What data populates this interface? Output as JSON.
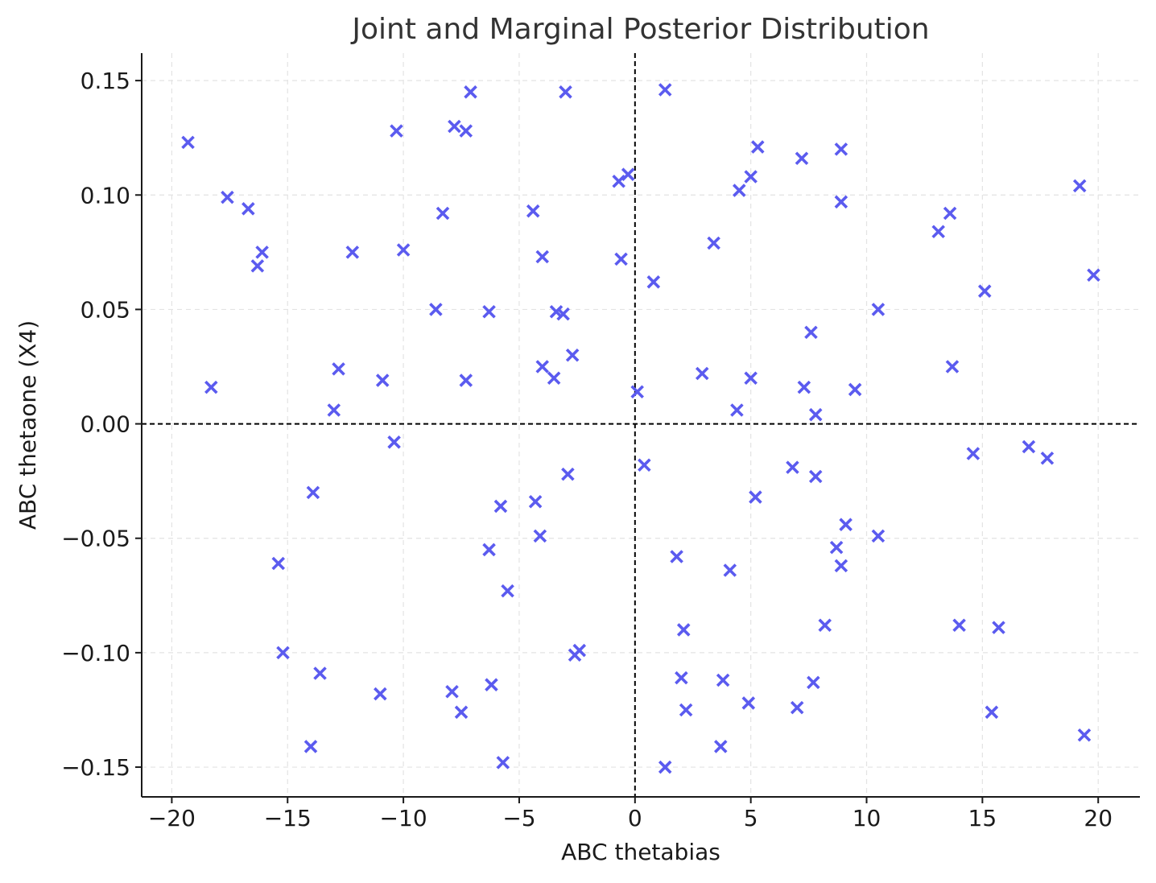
{
  "chart_data": {
    "type": "scatter",
    "title": "Joint and Marginal Posterior Distribution",
    "xlabel": "ABC thetabias",
    "ylabel": "ABC thetaone (X4)",
    "xlim": [
      -21.3,
      21.8
    ],
    "ylim": [
      -0.163,
      0.162
    ],
    "xticks": [
      -20,
      -15,
      -10,
      -5,
      0,
      5,
      10,
      15,
      20
    ],
    "xtick_labels": [
      "−20",
      "−15",
      "−10",
      "−5",
      "0",
      "5",
      "10",
      "15",
      "20"
    ],
    "yticks": [
      0.15,
      0.1,
      0.05,
      0.0,
      -0.05,
      -0.1,
      -0.15
    ],
    "ytick_labels": [
      "0.15",
      "0.10",
      "0.05",
      "0.00",
      "−0.05",
      "−0.10",
      "−0.15"
    ],
    "grid": true,
    "reference_lines": {
      "x": 0,
      "y": 0
    },
    "marker": "x",
    "color": "#5b5bef",
    "points": [
      [
        -19.3,
        0.123
      ],
      [
        -17.6,
        0.099
      ],
      [
        -16.7,
        0.094
      ],
      [
        -16.1,
        0.075
      ],
      [
        -16.3,
        0.069
      ],
      [
        -18.3,
        0.016
      ],
      [
        -12.2,
        0.075
      ],
      [
        -12.8,
        0.024
      ],
      [
        -13.0,
        0.006
      ],
      [
        -10.9,
        0.019
      ],
      [
        -10.3,
        0.128
      ],
      [
        -10.0,
        0.076
      ],
      [
        -10.4,
        -0.008
      ],
      [
        -8.3,
        0.092
      ],
      [
        -8.6,
        0.05
      ],
      [
        -7.8,
        0.13
      ],
      [
        -7.3,
        0.128
      ],
      [
        -7.1,
        0.145
      ],
      [
        -7.3,
        0.019
      ],
      [
        -6.3,
        0.049
      ],
      [
        -4.4,
        0.093
      ],
      [
        -4.0,
        0.073
      ],
      [
        -3.4,
        0.049
      ],
      [
        -3.1,
        0.048
      ],
      [
        -4.0,
        0.025
      ],
      [
        -3.5,
        0.02
      ],
      [
        -2.7,
        0.03
      ],
      [
        -3.0,
        0.145
      ],
      [
        -0.7,
        0.106
      ],
      [
        -0.3,
        0.109
      ],
      [
        -0.6,
        0.072
      ],
      [
        1.3,
        0.146
      ],
      [
        0.8,
        0.062
      ],
      [
        0.1,
        0.014
      ],
      [
        3.4,
        0.079
      ],
      [
        2.9,
        0.022
      ],
      [
        4.5,
        0.102
      ],
      [
        5.0,
        0.108
      ],
      [
        5.3,
        0.121
      ],
      [
        5.0,
        0.02
      ],
      [
        4.4,
        0.006
      ],
      [
        7.2,
        0.116
      ],
      [
        8.9,
        0.12
      ],
      [
        8.9,
        0.097
      ],
      [
        7.6,
        0.04
      ],
      [
        7.3,
        0.016
      ],
      [
        7.8,
        0.004
      ],
      [
        9.5,
        0.015
      ],
      [
        10.5,
        0.05
      ],
      [
        13.1,
        0.084
      ],
      [
        13.6,
        0.092
      ],
      [
        13.7,
        0.025
      ],
      [
        15.1,
        0.058
      ],
      [
        19.2,
        0.104
      ],
      [
        19.8,
        0.065
      ],
      [
        -13.9,
        -0.03
      ],
      [
        -15.4,
        -0.061
      ],
      [
        -15.2,
        -0.1
      ],
      [
        -13.6,
        -0.109
      ],
      [
        -14.0,
        -0.141
      ],
      [
        -11.0,
        -0.118
      ],
      [
        -7.9,
        -0.117
      ],
      [
        -7.5,
        -0.126
      ],
      [
        -5.8,
        -0.036
      ],
      [
        -6.3,
        -0.055
      ],
      [
        -5.5,
        -0.073
      ],
      [
        -6.2,
        -0.114
      ],
      [
        -5.7,
        -0.148
      ],
      [
        -4.3,
        -0.034
      ],
      [
        -4.1,
        -0.049
      ],
      [
        -2.9,
        -0.022
      ],
      [
        -2.4,
        -0.099
      ],
      [
        -2.6,
        -0.101
      ],
      [
        0.4,
        -0.018
      ],
      [
        1.8,
        -0.058
      ],
      [
        2.1,
        -0.09
      ],
      [
        2.0,
        -0.111
      ],
      [
        2.2,
        -0.125
      ],
      [
        1.3,
        -0.15
      ],
      [
        3.8,
        -0.112
      ],
      [
        3.7,
        -0.141
      ],
      [
        4.1,
        -0.064
      ],
      [
        5.2,
        -0.032
      ],
      [
        4.9,
        -0.122
      ],
      [
        6.8,
        -0.019
      ],
      [
        7.8,
        -0.023
      ],
      [
        7.0,
        -0.124
      ],
      [
        7.7,
        -0.113
      ],
      [
        8.2,
        -0.088
      ],
      [
        9.1,
        -0.044
      ],
      [
        8.7,
        -0.054
      ],
      [
        8.9,
        -0.062
      ],
      [
        10.5,
        -0.049
      ],
      [
        14.0,
        -0.088
      ],
      [
        14.6,
        -0.013
      ],
      [
        15.7,
        -0.089
      ],
      [
        15.4,
        -0.126
      ],
      [
        17.0,
        -0.01
      ],
      [
        17.8,
        -0.015
      ],
      [
        19.4,
        -0.136
      ]
    ]
  }
}
